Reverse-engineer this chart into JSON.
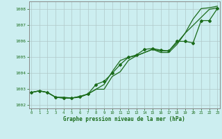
{
  "title": "Graphe pression niveau de la mer (hPa)",
  "bg_color": "#cceef0",
  "grid_color": "#b0c8c8",
  "line_color": "#1a6b1a",
  "x_ticks": [
    0,
    1,
    2,
    3,
    4,
    5,
    6,
    7,
    8,
    9,
    10,
    11,
    12,
    13,
    14,
    15,
    16,
    17,
    18,
    19,
    20,
    21,
    22,
    23
  ],
  "ylim": [
    1001.8,
    1008.5
  ],
  "yticks": [
    1002,
    1003,
    1004,
    1005,
    1006,
    1007,
    1008
  ],
  "series": [
    [
      1002.8,
      1002.9,
      1002.8,
      1002.5,
      1002.5,
      1002.45,
      1002.5,
      1002.7,
      1003.0,
      1003.3,
      1004.1,
      1004.8,
      1005.0,
      1005.1,
      1005.3,
      1005.5,
      1005.4,
      1005.4,
      1005.9,
      1006.5,
      1007.4,
      1008.05,
      1008.1,
      1008.2
    ],
    [
      1002.8,
      1002.9,
      1002.8,
      1002.5,
      1002.45,
      1002.45,
      1002.55,
      1002.7,
      1003.3,
      1003.5,
      1004.0,
      1004.55,
      1005.0,
      1005.15,
      1005.5,
      1005.55,
      1005.45,
      1005.4,
      1006.0,
      1006.0,
      1005.9,
      1007.3,
      1007.3,
      1008.05
    ],
    [
      1002.8,
      1002.9,
      1002.8,
      1002.5,
      1002.45,
      1002.45,
      1002.55,
      1002.7,
      1003.0,
      1003.0,
      1003.8,
      1004.1,
      1004.8,
      1005.1,
      1005.3,
      1005.5,
      1005.3,
      1005.3,
      1005.8,
      1006.5,
      1007.0,
      1007.5,
      1008.0,
      1008.1
    ]
  ],
  "marker_series_idx": 1,
  "marker": "D",
  "marker_size": 2.0,
  "linewidth": 0.9
}
